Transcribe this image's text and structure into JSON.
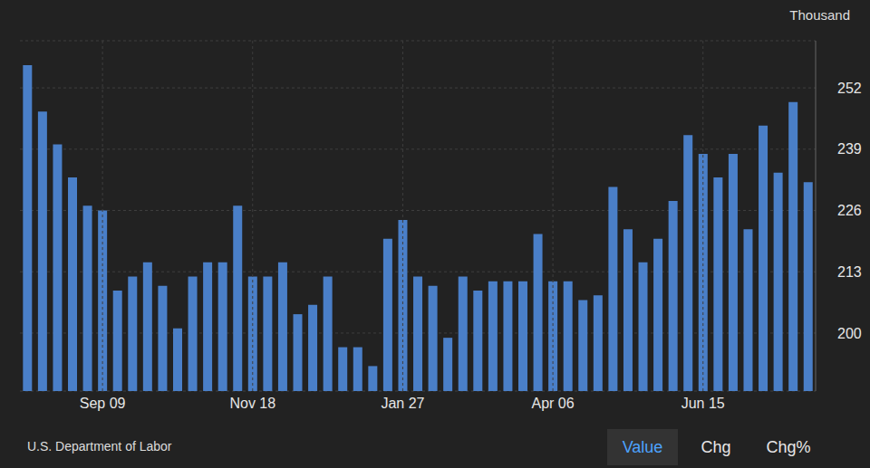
{
  "chart_data": {
    "type": "bar",
    "unit_label": "Thousand",
    "source": "U.S. Department of Labor",
    "buttons": [
      "Value",
      "Chg",
      "Chg%"
    ],
    "categories": [
      null,
      null,
      null,
      null,
      null,
      "Sep 09",
      null,
      null,
      null,
      null,
      null,
      null,
      null,
      null,
      null,
      "Nov 18",
      null,
      null,
      null,
      null,
      null,
      null,
      null,
      null,
      null,
      "Jan 27",
      null,
      null,
      null,
      null,
      null,
      null,
      null,
      null,
      null,
      "Apr 06",
      null,
      null,
      null,
      null,
      null,
      null,
      null,
      null,
      null,
      "Jun 15",
      null,
      null,
      null,
      null,
      null,
      null,
      null
    ],
    "values": [
      256.8,
      247,
      240,
      233,
      227,
      226,
      209,
      212,
      215,
      210,
      201,
      212,
      215,
      215,
      227,
      212,
      212,
      215,
      204,
      206,
      212,
      197,
      197,
      193,
      220,
      224,
      212,
      210,
      199,
      212,
      209,
      211,
      211,
      211,
      221,
      211,
      211,
      207,
      208,
      231,
      222,
      215,
      220,
      228,
      242,
      238,
      233,
      238,
      222,
      244,
      234,
      249,
      232
    ],
    "color": "#4a7fc8",
    "ylim": [
      187.7,
      262
    ],
    "yticks": [
      200,
      213,
      226,
      239,
      252
    ],
    "grid": true
  }
}
